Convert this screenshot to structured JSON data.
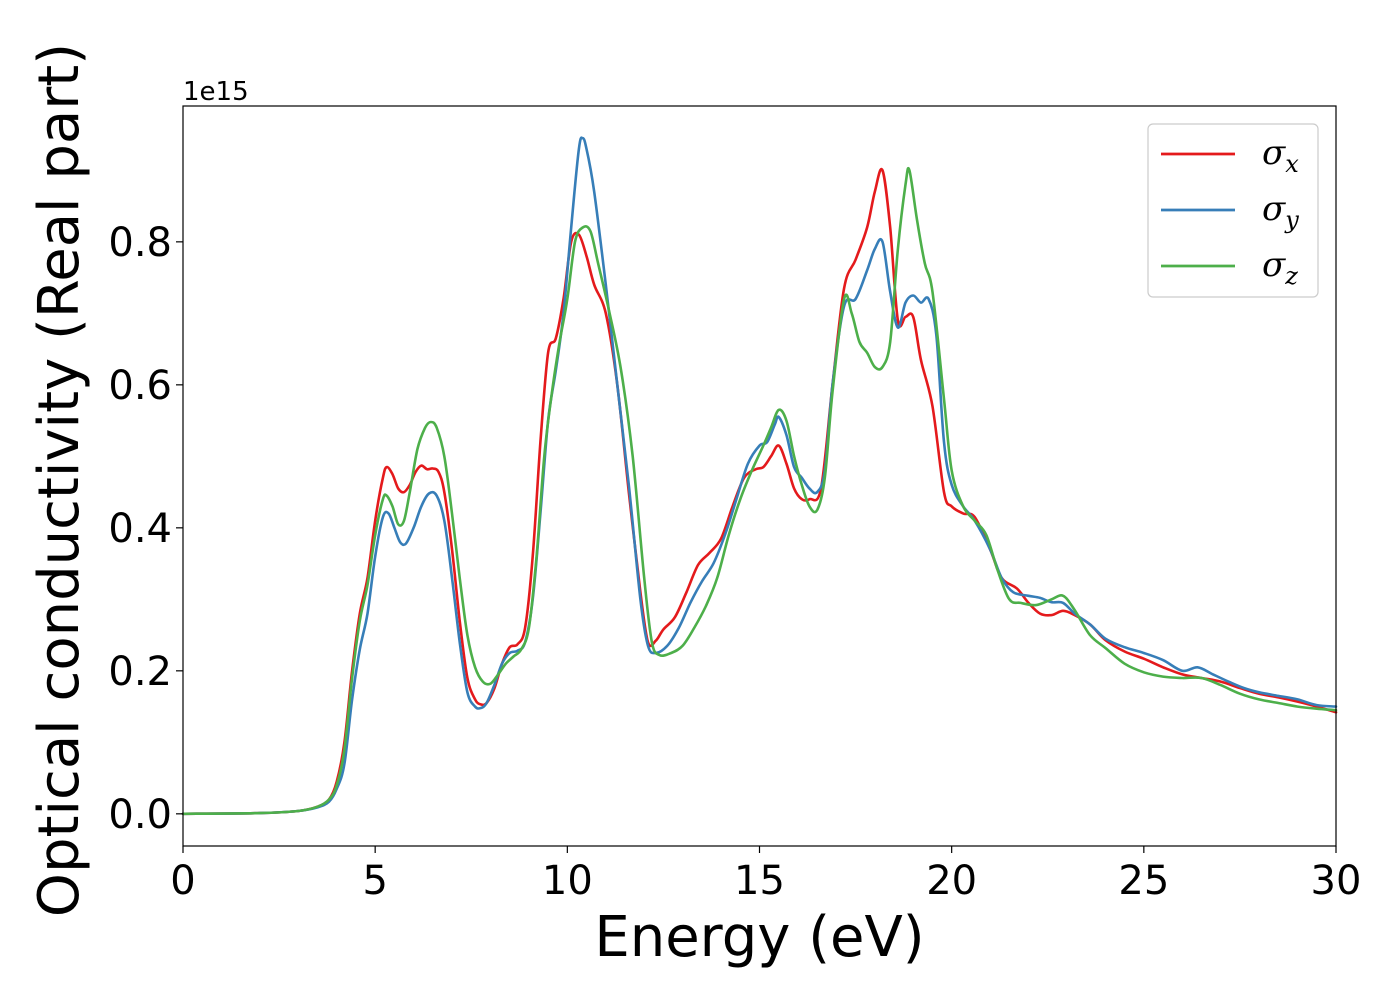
{
  "chart_data": {
    "type": "line",
    "xlabel": "Energy (eV)",
    "ylabel": "Optical conductivity (Real part)",
    "offset_text": "1e15",
    "xlim": [
      0,
      30
    ],
    "ylim": [
      -0.045,
      0.99
    ],
    "xticks": [
      0,
      5,
      10,
      15,
      20,
      25,
      30
    ],
    "xtick_labels": [
      "0",
      "5",
      "10",
      "15",
      "20",
      "25",
      "30"
    ],
    "yticks": [
      0.0,
      0.2,
      0.4,
      0.6,
      0.8
    ],
    "ytick_labels": [
      "0.0",
      "0.2",
      "0.4",
      "0.6",
      "0.8"
    ],
    "grid": false,
    "legend_position": "top-right",
    "series": [
      {
        "name": "σ",
        "subscript": "x",
        "color": "#e41a1c",
        "points": [
          [
            0,
            0
          ],
          [
            2,
            0.001
          ],
          [
            3,
            0.004
          ],
          [
            3.5,
            0.01
          ],
          [
            3.8,
            0.02
          ],
          [
            4.0,
            0.045
          ],
          [
            4.2,
            0.1
          ],
          [
            4.4,
            0.2
          ],
          [
            4.6,
            0.28
          ],
          [
            4.8,
            0.33
          ],
          [
            5.0,
            0.41
          ],
          [
            5.2,
            0.47
          ],
          [
            5.3,
            0.485
          ],
          [
            5.45,
            0.475
          ],
          [
            5.6,
            0.455
          ],
          [
            5.75,
            0.45
          ],
          [
            5.9,
            0.46
          ],
          [
            6.05,
            0.478
          ],
          [
            6.2,
            0.487
          ],
          [
            6.35,
            0.482
          ],
          [
            6.5,
            0.483
          ],
          [
            6.65,
            0.478
          ],
          [
            6.8,
            0.45
          ],
          [
            7.0,
            0.37
          ],
          [
            7.2,
            0.27
          ],
          [
            7.4,
            0.19
          ],
          [
            7.6,
            0.16
          ],
          [
            7.75,
            0.153
          ],
          [
            7.9,
            0.155
          ],
          [
            8.1,
            0.175
          ],
          [
            8.3,
            0.21
          ],
          [
            8.5,
            0.233
          ],
          [
            8.7,
            0.237
          ],
          [
            8.9,
            0.26
          ],
          [
            9.1,
            0.36
          ],
          [
            9.3,
            0.52
          ],
          [
            9.5,
            0.645
          ],
          [
            9.7,
            0.665
          ],
          [
            9.9,
            0.72
          ],
          [
            10.1,
            0.8
          ],
          [
            10.3,
            0.81
          ],
          [
            10.5,
            0.78
          ],
          [
            10.7,
            0.74
          ],
          [
            11.0,
            0.7
          ],
          [
            11.3,
            0.6
          ],
          [
            11.6,
            0.45
          ],
          [
            11.9,
            0.31
          ],
          [
            12.1,
            0.24
          ],
          [
            12.3,
            0.242
          ],
          [
            12.5,
            0.258
          ],
          [
            12.8,
            0.275
          ],
          [
            13.1,
            0.31
          ],
          [
            13.4,
            0.348
          ],
          [
            13.7,
            0.365
          ],
          [
            14.0,
            0.385
          ],
          [
            14.3,
            0.43
          ],
          [
            14.6,
            0.47
          ],
          [
            14.9,
            0.482
          ],
          [
            15.1,
            0.485
          ],
          [
            15.3,
            0.5
          ],
          [
            15.5,
            0.515
          ],
          [
            15.7,
            0.49
          ],
          [
            15.9,
            0.455
          ],
          [
            16.1,
            0.44
          ],
          [
            16.3,
            0.44
          ],
          [
            16.6,
            0.455
          ],
          [
            16.9,
            0.6
          ],
          [
            17.2,
            0.735
          ],
          [
            17.5,
            0.775
          ],
          [
            17.8,
            0.82
          ],
          [
            18.0,
            0.87
          ],
          [
            18.2,
            0.9
          ],
          [
            18.4,
            0.82
          ],
          [
            18.6,
            0.69
          ],
          [
            18.8,
            0.695
          ],
          [
            19.0,
            0.695
          ],
          [
            19.2,
            0.635
          ],
          [
            19.5,
            0.57
          ],
          [
            19.8,
            0.45
          ],
          [
            20.0,
            0.43
          ],
          [
            20.3,
            0.42
          ],
          [
            20.6,
            0.415
          ],
          [
            21.0,
            0.37
          ],
          [
            21.3,
            0.33
          ],
          [
            21.7,
            0.315
          ],
          [
            22.0,
            0.295
          ],
          [
            22.3,
            0.28
          ],
          [
            22.6,
            0.278
          ],
          [
            22.9,
            0.284
          ],
          [
            23.2,
            0.278
          ],
          [
            23.6,
            0.265
          ],
          [
            24.0,
            0.243
          ],
          [
            24.5,
            0.227
          ],
          [
            25.0,
            0.217
          ],
          [
            25.5,
            0.205
          ],
          [
            26.0,
            0.195
          ],
          [
            26.5,
            0.19
          ],
          [
            27.0,
            0.185
          ],
          [
            27.5,
            0.176
          ],
          [
            28.0,
            0.168
          ],
          [
            28.5,
            0.163
          ],
          [
            29.0,
            0.157
          ],
          [
            29.5,
            0.15
          ],
          [
            30.0,
            0.142
          ]
        ]
      },
      {
        "name": "σ",
        "subscript": "y",
        "color": "#377eb8",
        "points": [
          [
            0,
            0
          ],
          [
            2,
            0.001
          ],
          [
            3,
            0.004
          ],
          [
            3.5,
            0.009
          ],
          [
            3.8,
            0.017
          ],
          [
            4.0,
            0.035
          ],
          [
            4.2,
            0.07
          ],
          [
            4.4,
            0.16
          ],
          [
            4.6,
            0.23
          ],
          [
            4.8,
            0.28
          ],
          [
            5.0,
            0.36
          ],
          [
            5.2,
            0.415
          ],
          [
            5.35,
            0.42
          ],
          [
            5.5,
            0.4
          ],
          [
            5.65,
            0.38
          ],
          [
            5.8,
            0.378
          ],
          [
            6.0,
            0.4
          ],
          [
            6.2,
            0.43
          ],
          [
            6.4,
            0.448
          ],
          [
            6.6,
            0.445
          ],
          [
            6.8,
            0.41
          ],
          [
            7.0,
            0.33
          ],
          [
            7.2,
            0.24
          ],
          [
            7.4,
            0.17
          ],
          [
            7.6,
            0.15
          ],
          [
            7.75,
            0.148
          ],
          [
            7.9,
            0.155
          ],
          [
            8.1,
            0.18
          ],
          [
            8.3,
            0.21
          ],
          [
            8.5,
            0.225
          ],
          [
            8.7,
            0.228
          ],
          [
            8.9,
            0.24
          ],
          [
            9.1,
            0.3
          ],
          [
            9.3,
            0.42
          ],
          [
            9.5,
            0.55
          ],
          [
            9.7,
            0.62
          ],
          [
            9.9,
            0.7
          ],
          [
            10.1,
            0.82
          ],
          [
            10.3,
            0.93
          ],
          [
            10.4,
            0.945
          ],
          [
            10.5,
            0.93
          ],
          [
            10.7,
            0.87
          ],
          [
            11.0,
            0.74
          ],
          [
            11.3,
            0.6
          ],
          [
            11.6,
            0.46
          ],
          [
            11.9,
            0.3
          ],
          [
            12.1,
            0.235
          ],
          [
            12.3,
            0.225
          ],
          [
            12.6,
            0.235
          ],
          [
            12.9,
            0.26
          ],
          [
            13.2,
            0.295
          ],
          [
            13.5,
            0.325
          ],
          [
            13.8,
            0.35
          ],
          [
            14.1,
            0.39
          ],
          [
            14.4,
            0.44
          ],
          [
            14.7,
            0.49
          ],
          [
            15.0,
            0.515
          ],
          [
            15.2,
            0.52
          ],
          [
            15.4,
            0.545
          ],
          [
            15.5,
            0.555
          ],
          [
            15.7,
            0.53
          ],
          [
            15.9,
            0.485
          ],
          [
            16.1,
            0.47
          ],
          [
            16.3,
            0.455
          ],
          [
            16.5,
            0.45
          ],
          [
            16.7,
            0.48
          ],
          [
            16.9,
            0.6
          ],
          [
            17.2,
            0.71
          ],
          [
            17.5,
            0.72
          ],
          [
            17.8,
            0.76
          ],
          [
            18.0,
            0.79
          ],
          [
            18.2,
            0.8
          ],
          [
            18.4,
            0.73
          ],
          [
            18.6,
            0.68
          ],
          [
            18.8,
            0.715
          ],
          [
            19.0,
            0.725
          ],
          [
            19.2,
            0.715
          ],
          [
            19.4,
            0.72
          ],
          [
            19.6,
            0.67
          ],
          [
            19.8,
            0.52
          ],
          [
            20.0,
            0.46
          ],
          [
            20.3,
            0.43
          ],
          [
            20.6,
            0.41
          ],
          [
            21.0,
            0.37
          ],
          [
            21.3,
            0.33
          ],
          [
            21.6,
            0.31
          ],
          [
            22.0,
            0.305
          ],
          [
            22.3,
            0.302
          ],
          [
            22.6,
            0.296
          ],
          [
            22.9,
            0.295
          ],
          [
            23.2,
            0.28
          ],
          [
            23.6,
            0.265
          ],
          [
            24.0,
            0.245
          ],
          [
            24.5,
            0.233
          ],
          [
            25.0,
            0.225
          ],
          [
            25.5,
            0.215
          ],
          [
            26.0,
            0.2
          ],
          [
            26.4,
            0.205
          ],
          [
            26.8,
            0.195
          ],
          [
            27.2,
            0.185
          ],
          [
            27.6,
            0.176
          ],
          [
            28.0,
            0.17
          ],
          [
            28.5,
            0.165
          ],
          [
            29.0,
            0.16
          ],
          [
            29.5,
            0.152
          ],
          [
            30.0,
            0.15
          ]
        ]
      },
      {
        "name": "σ",
        "subscript": "z",
        "color": "#4daf4a",
        "points": [
          [
            0,
            0
          ],
          [
            2,
            0.001
          ],
          [
            3,
            0.004
          ],
          [
            3.5,
            0.01
          ],
          [
            3.8,
            0.02
          ],
          [
            4.0,
            0.04
          ],
          [
            4.2,
            0.09
          ],
          [
            4.4,
            0.19
          ],
          [
            4.6,
            0.27
          ],
          [
            4.8,
            0.32
          ],
          [
            5.0,
            0.39
          ],
          [
            5.2,
            0.44
          ],
          [
            5.3,
            0.445
          ],
          [
            5.45,
            0.43
          ],
          [
            5.6,
            0.405
          ],
          [
            5.75,
            0.41
          ],
          [
            5.9,
            0.45
          ],
          [
            6.1,
            0.51
          ],
          [
            6.3,
            0.54
          ],
          [
            6.45,
            0.548
          ],
          [
            6.6,
            0.54
          ],
          [
            6.8,
            0.5
          ],
          [
            7.0,
            0.42
          ],
          [
            7.2,
            0.33
          ],
          [
            7.4,
            0.25
          ],
          [
            7.6,
            0.205
          ],
          [
            7.8,
            0.185
          ],
          [
            8.0,
            0.182
          ],
          [
            8.2,
            0.195
          ],
          [
            8.4,
            0.21
          ],
          [
            8.6,
            0.22
          ],
          [
            8.8,
            0.23
          ],
          [
            9.0,
            0.26
          ],
          [
            9.2,
            0.36
          ],
          [
            9.4,
            0.5
          ],
          [
            9.6,
            0.59
          ],
          [
            9.8,
            0.66
          ],
          [
            10.0,
            0.72
          ],
          [
            10.2,
            0.8
          ],
          [
            10.4,
            0.82
          ],
          [
            10.6,
            0.815
          ],
          [
            10.8,
            0.77
          ],
          [
            11.1,
            0.7
          ],
          [
            11.4,
            0.62
          ],
          [
            11.7,
            0.5
          ],
          [
            12.0,
            0.33
          ],
          [
            12.2,
            0.24
          ],
          [
            12.4,
            0.222
          ],
          [
            12.7,
            0.225
          ],
          [
            13.0,
            0.235
          ],
          [
            13.3,
            0.26
          ],
          [
            13.6,
            0.29
          ],
          [
            13.9,
            0.33
          ],
          [
            14.2,
            0.39
          ],
          [
            14.5,
            0.44
          ],
          [
            14.8,
            0.48
          ],
          [
            15.1,
            0.515
          ],
          [
            15.3,
            0.54
          ],
          [
            15.5,
            0.565
          ],
          [
            15.7,
            0.55
          ],
          [
            15.9,
            0.5
          ],
          [
            16.1,
            0.46
          ],
          [
            16.3,
            0.43
          ],
          [
            16.5,
            0.425
          ],
          [
            16.7,
            0.47
          ],
          [
            16.9,
            0.59
          ],
          [
            17.2,
            0.72
          ],
          [
            17.4,
            0.7
          ],
          [
            17.6,
            0.66
          ],
          [
            17.8,
            0.645
          ],
          [
            18.0,
            0.625
          ],
          [
            18.2,
            0.625
          ],
          [
            18.4,
            0.66
          ],
          [
            18.6,
            0.79
          ],
          [
            18.8,
            0.88
          ],
          [
            18.9,
            0.9
          ],
          [
            19.1,
            0.83
          ],
          [
            19.3,
            0.77
          ],
          [
            19.5,
            0.73
          ],
          [
            19.8,
            0.58
          ],
          [
            20.0,
            0.48
          ],
          [
            20.3,
            0.43
          ],
          [
            20.6,
            0.41
          ],
          [
            20.9,
            0.39
          ],
          [
            21.2,
            0.34
          ],
          [
            21.5,
            0.3
          ],
          [
            21.8,
            0.295
          ],
          [
            22.2,
            0.292
          ],
          [
            22.6,
            0.3
          ],
          [
            22.9,
            0.305
          ],
          [
            23.2,
            0.285
          ],
          [
            23.6,
            0.25
          ],
          [
            24.0,
            0.232
          ],
          [
            24.5,
            0.21
          ],
          [
            25.0,
            0.198
          ],
          [
            25.5,
            0.192
          ],
          [
            26.0,
            0.19
          ],
          [
            26.5,
            0.19
          ],
          [
            27.0,
            0.18
          ],
          [
            27.5,
            0.168
          ],
          [
            28.0,
            0.16
          ],
          [
            28.5,
            0.155
          ],
          [
            29.0,
            0.15
          ],
          [
            29.5,
            0.147
          ],
          [
            30.0,
            0.145
          ]
        ]
      }
    ]
  }
}
